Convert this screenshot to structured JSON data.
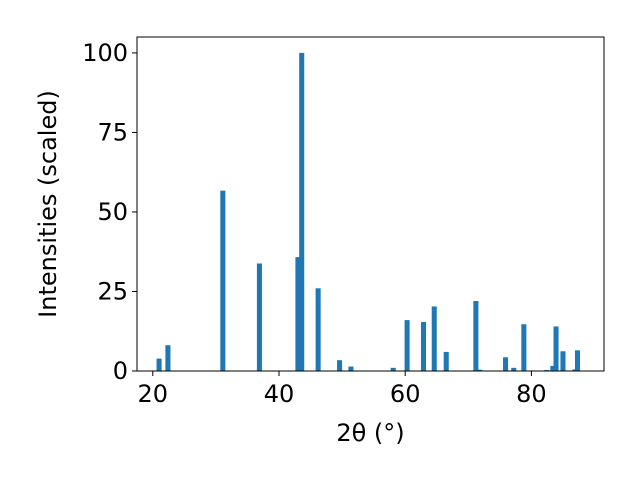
{
  "chart_data": {
    "type": "bar",
    "title": "",
    "xlabel": "2θ (°)",
    "ylabel": "Intensities (scaled)",
    "xlim": [
      17.5,
      91.5
    ],
    "ylim": [
      0,
      105
    ],
    "xticks": [
      20,
      40,
      60,
      80
    ],
    "yticks": [
      0,
      25,
      50,
      75,
      100
    ],
    "xtick_labels": [
      "20",
      "40",
      "60",
      "80"
    ],
    "ytick_labels": [
      "0",
      "25",
      "50",
      "75",
      "100"
    ],
    "bar_width": 0.8,
    "grid": false,
    "legend": "none",
    "bar_color": "#1f77b4",
    "x": [
      21.0,
      22.4,
      31.1,
      36.9,
      43.0,
      43.6,
      46.2,
      49.6,
      51.4,
      58.1,
      60.3,
      62.9,
      64.6,
      66.5,
      71.2,
      71.8,
      75.9,
      77.2,
      78.8,
      82.4,
      83.4,
      83.9,
      85.0,
      86.9,
      87.3
    ],
    "values": [
      3.9,
      8.1,
      56.7,
      33.8,
      35.8,
      100.0,
      26.0,
      3.4,
      1.4,
      1.0,
      16.0,
      15.4,
      20.3,
      6.0,
      22.0,
      0.4,
      4.3,
      1.0,
      14.7,
      0.3,
      1.6,
      14.0,
      6.2,
      0.5,
      6.5
    ]
  }
}
